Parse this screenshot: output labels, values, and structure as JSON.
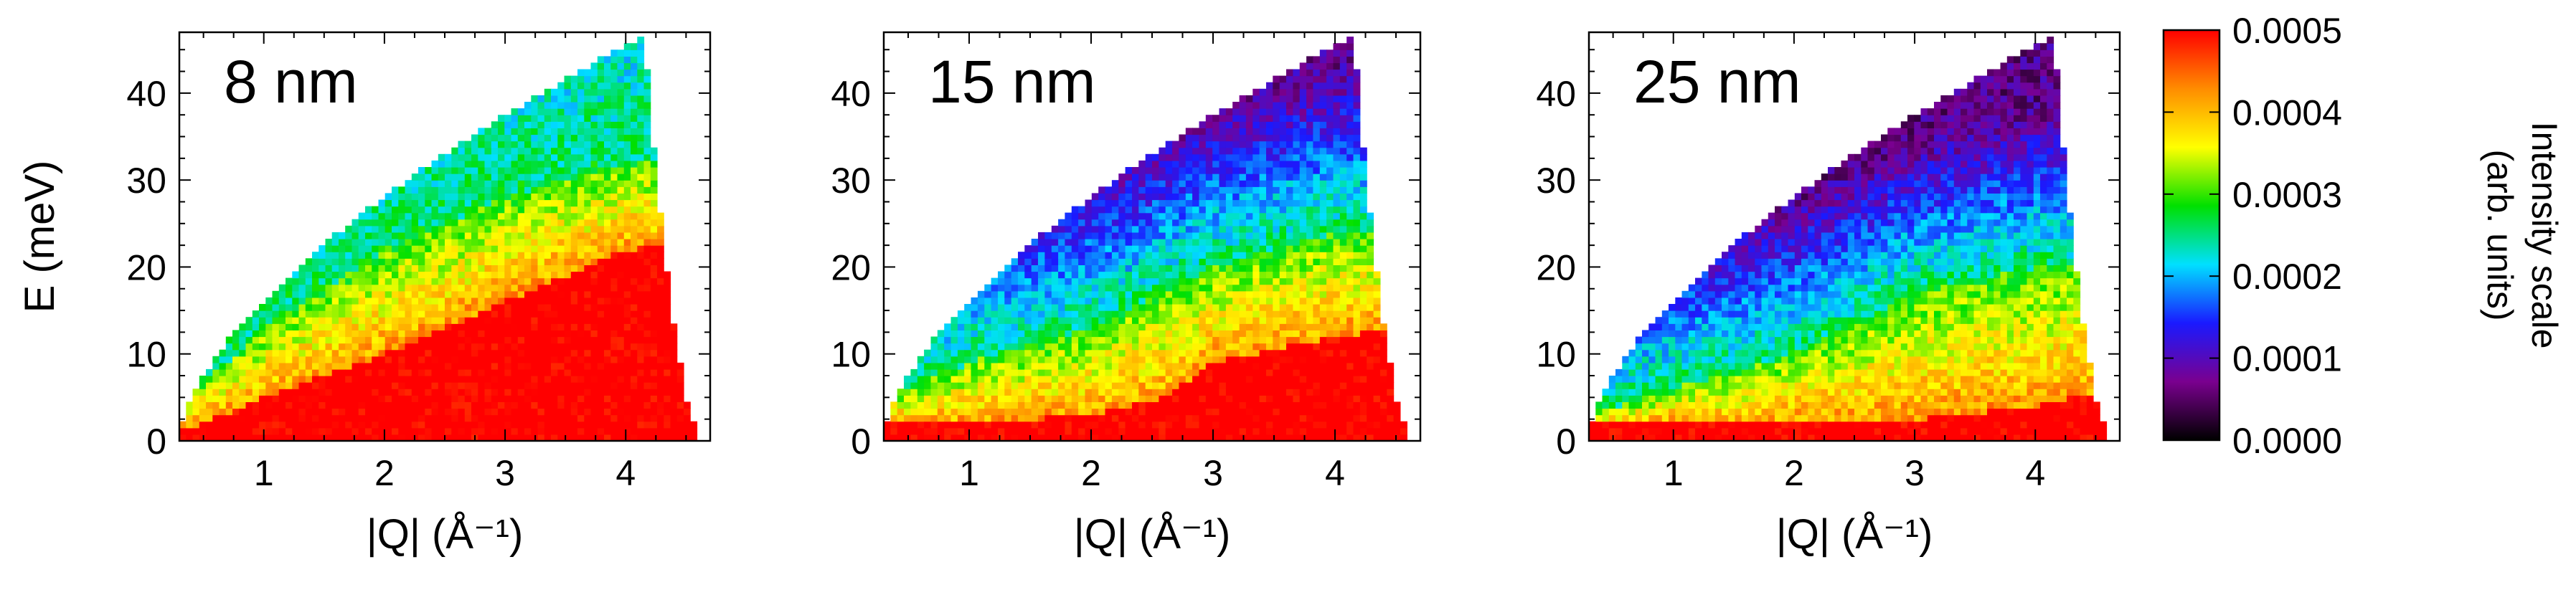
{
  "chart_data": [
    {
      "type": "heatmap",
      "panel_label": "8 nm",
      "xlabel": "|Q| (Å⁻¹)",
      "ylabel": "E (meV)",
      "xlim": [
        0.3,
        4.7
      ],
      "ylim": [
        0,
        47
      ],
      "xticks": [
        1,
        2,
        3,
        4
      ],
      "yticks": [
        0,
        10,
        20,
        30,
        40
      ],
      "grid": false,
      "data_levels": {
        "high_region_top_meV_at_Q": [
          [
            0.3,
            1
          ],
          [
            1,
            5
          ],
          [
            2,
            10
          ],
          [
            3,
            16
          ],
          [
            4,
            22
          ],
          [
            4.6,
            23
          ]
        ],
        "mid_region_top_meV_at_Q": [
          [
            0.3,
            4
          ],
          [
            1,
            13
          ],
          [
            2,
            22
          ],
          [
            3,
            28
          ],
          [
            4,
            32
          ]
        ],
        "upper_region_intensity": 0.00021
      }
    },
    {
      "type": "heatmap",
      "panel_label": "15 nm",
      "xlabel": "|Q| (Å⁻¹)",
      "xlim": [
        0.3,
        4.7
      ],
      "ylim": [
        0,
        47
      ],
      "xticks": [
        1,
        2,
        3,
        4
      ],
      "yticks": [
        0,
        10,
        20,
        30,
        40
      ],
      "grid": false,
      "data_levels": {
        "high_region_top_meV_at_Q": [
          [
            0.3,
            2
          ],
          [
            1,
            2
          ],
          [
            2,
            3
          ],
          [
            2.6,
            5
          ],
          [
            3,
            9
          ],
          [
            4,
            12
          ],
          [
            4.6,
            13
          ]
        ],
        "mid_region_top_meV_at_Q": [
          [
            0.3,
            5
          ],
          [
            1,
            9
          ],
          [
            2,
            13
          ],
          [
            3,
            20
          ],
          [
            4,
            24
          ]
        ],
        "upper_region_intensity": 8e-05
      }
    },
    {
      "type": "heatmap",
      "panel_label": "25 nm",
      "xlabel": "|Q| (Å⁻¹)",
      "xlim": [
        0.3,
        4.7
      ],
      "ylim": [
        0,
        47
      ],
      "xticks": [
        1,
        2,
        3,
        4
      ],
      "yticks": [
        0,
        10,
        20,
        30,
        40
      ],
      "grid": false,
      "data_levels": {
        "high_region_top_meV_at_Q": [
          [
            0.3,
            2
          ],
          [
            2,
            2
          ],
          [
            3,
            2.5
          ],
          [
            4,
            4
          ],
          [
            4.6,
            6
          ]
        ],
        "mid_region_top_meV_at_Q": [
          [
            0.3,
            3
          ],
          [
            1,
            6
          ],
          [
            2,
            10
          ],
          [
            3,
            17
          ],
          [
            4,
            20
          ]
        ],
        "upper_region_intensity": 7e-05
      }
    }
  ],
  "colorbar": {
    "title": "Intensity scale",
    "subtitle": "(arb. units)",
    "ticks": [
      "0.0000",
      "0.0001",
      "0.0002",
      "0.0003",
      "0.0004",
      "0.0005"
    ],
    "range": [
      0,
      0.0005
    ],
    "colors": [
      "#000000",
      "#7a008f",
      "#1a1aff",
      "#00e0ff",
      "#00e000",
      "#ffff00",
      "#ff8c00",
      "#ff0000"
    ]
  }
}
